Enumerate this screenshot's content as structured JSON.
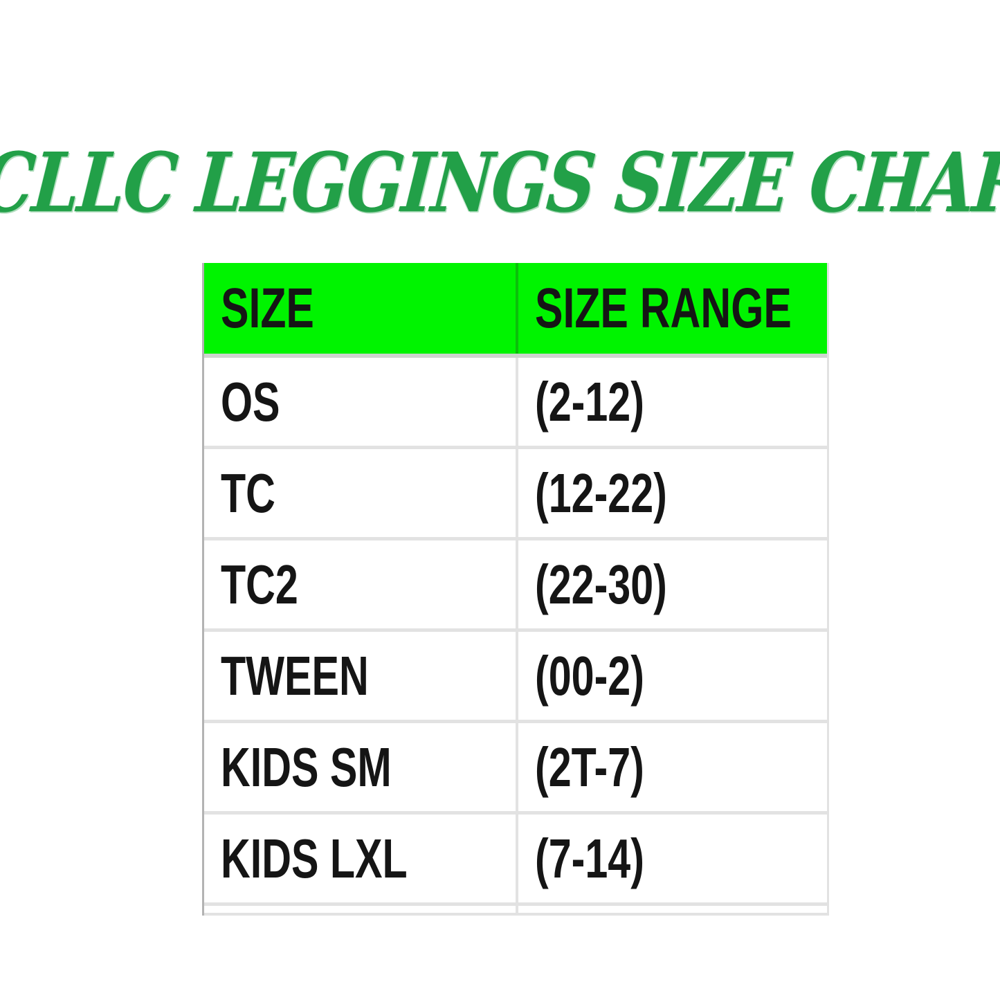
{
  "title": "GCLLC LEGGINGS SIZE CHART",
  "colors": {
    "title_green": "#22a048",
    "header_green": "#00f400",
    "gridline_light": "#e2e2e2",
    "gridline_dark": "#b3b3b3",
    "text_black": "#151515"
  },
  "table": {
    "headers": [
      "SIZE",
      "SIZE RANGE"
    ],
    "rows": [
      {
        "size": "OS",
        "range": "(2-12)"
      },
      {
        "size": "TC",
        "range": "(12-22)"
      },
      {
        "size": "TC2",
        "range": "(22-30)"
      },
      {
        "size": "TWEEN",
        "range": "(00-2)"
      },
      {
        "size": "KIDS SM",
        "range": "(2T-7)"
      },
      {
        "size": "KIDS LXL",
        "range": "(7-14)"
      }
    ]
  }
}
